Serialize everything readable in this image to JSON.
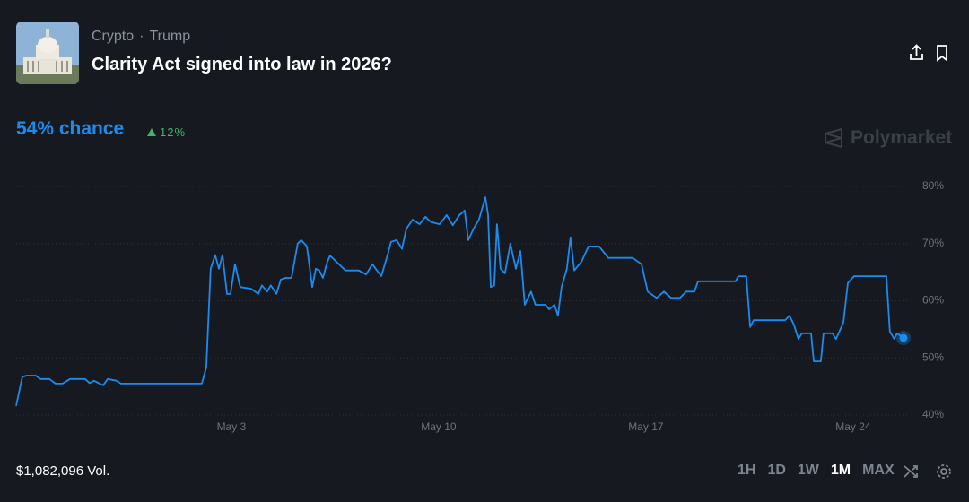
{
  "header": {
    "categories": [
      "Crypto",
      "Trump"
    ],
    "title": "Clarity Act signed into law in 2026?",
    "chance": "54% chance",
    "change": "12%",
    "brand": "Polymarket"
  },
  "chart_data": {
    "type": "line",
    "color": "#1a8cf0",
    "grid": true,
    "x": [
      -4.27,
      -4.06,
      -3.91,
      -3.61,
      -3.45,
      -3.15,
      -2.94,
      -2.7,
      -2.45,
      -1.94,
      -1.79,
      -1.64,
      -1.33,
      -1.18,
      -0.88,
      -0.73,
      2.0,
      2.15,
      2.3,
      2.45,
      2.58,
      2.7,
      2.85,
      2.97,
      3.12,
      3.3,
      3.67,
      3.91,
      4.03,
      4.21,
      4.33,
      4.52,
      4.67,
      4.82,
      5.03,
      5.24,
      5.36,
      5.55,
      5.73,
      5.85,
      5.97,
      6.09,
      6.24,
      6.33,
      6.55,
      6.85,
      7.3,
      7.55,
      7.76,
      8.06,
      8.27,
      8.39,
      8.58,
      8.76,
      8.91,
      9.12,
      9.36,
      9.55,
      9.73,
      10.03,
      10.27,
      10.48,
      10.7,
      10.88,
      11.0,
      11.18,
      11.36,
      11.58,
      11.67,
      11.76,
      11.88,
      11.97,
      12.09,
      12.24,
      12.42,
      12.61,
      12.76,
      12.91,
      13.12,
      13.27,
      13.61,
      13.73,
      13.91,
      14.03,
      14.15,
      14.33,
      14.45,
      14.58,
      14.82,
      15.06,
      15.42,
      15.73,
      16.55,
      16.85,
      17.06,
      17.36,
      17.61,
      17.85,
      18.15,
      18.36,
      18.64,
      18.76,
      20.03,
      20.12,
      20.39,
      20.52,
      20.64,
      21.7,
      21.85,
      22.0,
      22.15,
      22.27,
      22.58,
      22.67,
      22.91,
      23.0,
      23.3,
      23.42,
      23.67,
      23.82,
      24.03,
      25.12,
      25.24,
      25.39,
      25.48,
      25.7
    ],
    "values": [
      41.6,
      46.7,
      46.9,
      46.9,
      46.3,
      46.3,
      45.5,
      45.5,
      46.3,
      46.3,
      45.6,
      46,
      45.2,
      46.3,
      46,
      45.5,
      45.5,
      48.3,
      65.6,
      68,
      65.6,
      68,
      61.2,
      61.2,
      66.4,
      62.4,
      62.1,
      61.2,
      62.7,
      61.6,
      62.7,
      61.2,
      63.7,
      64,
      64,
      70,
      70.6,
      69.5,
      62.4,
      65.6,
      65.3,
      64,
      66.8,
      67.9,
      66.8,
      65.3,
      65.3,
      64.6,
      66.4,
      64.3,
      67.9,
      70.3,
      70.6,
      69.1,
      72.6,
      74.2,
      73.4,
      74.7,
      73.8,
      73.4,
      75,
      73.2,
      75,
      75.8,
      70.6,
      72.6,
      74.2,
      78.1,
      75,
      62.4,
      62.7,
      73.4,
      65.6,
      64.8,
      70,
      65.6,
      68.7,
      59.3,
      61.6,
      59.3,
      59.3,
      58.5,
      59.3,
      57.4,
      62.4,
      65.6,
      71.1,
      65.3,
      66.8,
      69.5,
      69.5,
      67.5,
      67.5,
      66.4,
      61.6,
      60.5,
      61.6,
      60.5,
      60.5,
      61.6,
      61.6,
      63.4,
      63.4,
      64.3,
      64.3,
      55.4,
      56.6,
      56.6,
      57.4,
      55.8,
      53.3,
      54.3,
      54.3,
      49.4,
      49.4,
      54.3,
      54.3,
      53.3,
      56.2,
      63.1,
      64.3,
      64.3,
      54.6,
      53.3,
      54.3,
      53.5
    ],
    "xlim": [
      -4.27,
      25.7
    ],
    "xticks": [
      {
        "value": 3,
        "label": "May 3"
      },
      {
        "value": 10,
        "label": "May 10"
      },
      {
        "value": 17,
        "label": "May 17"
      },
      {
        "value": 24,
        "label": "May 24"
      }
    ],
    "ylim": [
      40,
      80
    ],
    "yticks": [
      {
        "value": 40,
        "label": "40%"
      },
      {
        "value": 50,
        "label": "50%"
      },
      {
        "value": 60,
        "label": "60%"
      },
      {
        "value": 70,
        "label": "70%"
      },
      {
        "value": 80,
        "label": "80%"
      }
    ]
  },
  "footer": {
    "volume": "$1,082,096 Vol.",
    "ranges": [
      "1H",
      "1D",
      "1W",
      "1M",
      "MAX"
    ]
  }
}
